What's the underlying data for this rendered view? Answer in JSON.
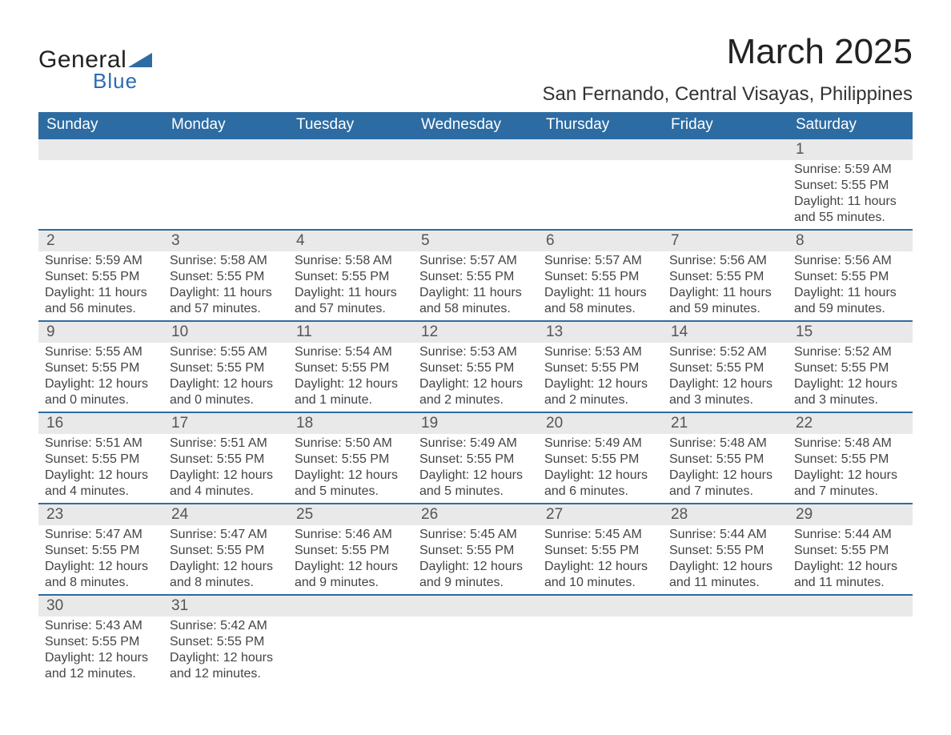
{
  "brand": {
    "line1": "General",
    "line2": "Blue",
    "triangle_color": "#2d6ca2"
  },
  "title": "March 2025",
  "location": "San Fernando, Central Visayas, Philippines",
  "colors": {
    "header_bg": "#2d6ca2",
    "header_text": "#ffffff",
    "daynum_bg": "#e9e9e9",
    "row_divider": "#2d6ca2",
    "body_text": "#444444",
    "background": "#ffffff"
  },
  "typography": {
    "title_fontsize": 44,
    "location_fontsize": 24,
    "header_fontsize": 19,
    "daynum_fontsize": 19,
    "cell_fontsize": 16
  },
  "day_headers": [
    "Sunday",
    "Monday",
    "Tuesday",
    "Wednesday",
    "Thursday",
    "Friday",
    "Saturday"
  ],
  "labels": {
    "sunrise": "Sunrise",
    "sunset": "Sunset",
    "daylight": "Daylight"
  },
  "weeks": [
    [
      null,
      null,
      null,
      null,
      null,
      null,
      {
        "n": "1",
        "sunrise": "5:59 AM",
        "sunset": "5:55 PM",
        "daylight": "11 hours and 55 minutes."
      }
    ],
    [
      {
        "n": "2",
        "sunrise": "5:59 AM",
        "sunset": "5:55 PM",
        "daylight": "11 hours and 56 minutes."
      },
      {
        "n": "3",
        "sunrise": "5:58 AM",
        "sunset": "5:55 PM",
        "daylight": "11 hours and 57 minutes."
      },
      {
        "n": "4",
        "sunrise": "5:58 AM",
        "sunset": "5:55 PM",
        "daylight": "11 hours and 57 minutes."
      },
      {
        "n": "5",
        "sunrise": "5:57 AM",
        "sunset": "5:55 PM",
        "daylight": "11 hours and 58 minutes."
      },
      {
        "n": "6",
        "sunrise": "5:57 AM",
        "sunset": "5:55 PM",
        "daylight": "11 hours and 58 minutes."
      },
      {
        "n": "7",
        "sunrise": "5:56 AM",
        "sunset": "5:55 PM",
        "daylight": "11 hours and 59 minutes."
      },
      {
        "n": "8",
        "sunrise": "5:56 AM",
        "sunset": "5:55 PM",
        "daylight": "11 hours and 59 minutes."
      }
    ],
    [
      {
        "n": "9",
        "sunrise": "5:55 AM",
        "sunset": "5:55 PM",
        "daylight": "12 hours and 0 minutes."
      },
      {
        "n": "10",
        "sunrise": "5:55 AM",
        "sunset": "5:55 PM",
        "daylight": "12 hours and 0 minutes."
      },
      {
        "n": "11",
        "sunrise": "5:54 AM",
        "sunset": "5:55 PM",
        "daylight": "12 hours and 1 minute."
      },
      {
        "n": "12",
        "sunrise": "5:53 AM",
        "sunset": "5:55 PM",
        "daylight": "12 hours and 2 minutes."
      },
      {
        "n": "13",
        "sunrise": "5:53 AM",
        "sunset": "5:55 PM",
        "daylight": "12 hours and 2 minutes."
      },
      {
        "n": "14",
        "sunrise": "5:52 AM",
        "sunset": "5:55 PM",
        "daylight": "12 hours and 3 minutes."
      },
      {
        "n": "15",
        "sunrise": "5:52 AM",
        "sunset": "5:55 PM",
        "daylight": "12 hours and 3 minutes."
      }
    ],
    [
      {
        "n": "16",
        "sunrise": "5:51 AM",
        "sunset": "5:55 PM",
        "daylight": "12 hours and 4 minutes."
      },
      {
        "n": "17",
        "sunrise": "5:51 AM",
        "sunset": "5:55 PM",
        "daylight": "12 hours and 4 minutes."
      },
      {
        "n": "18",
        "sunrise": "5:50 AM",
        "sunset": "5:55 PM",
        "daylight": "12 hours and 5 minutes."
      },
      {
        "n": "19",
        "sunrise": "5:49 AM",
        "sunset": "5:55 PM",
        "daylight": "12 hours and 5 minutes."
      },
      {
        "n": "20",
        "sunrise": "5:49 AM",
        "sunset": "5:55 PM",
        "daylight": "12 hours and 6 minutes."
      },
      {
        "n": "21",
        "sunrise": "5:48 AM",
        "sunset": "5:55 PM",
        "daylight": "12 hours and 7 minutes."
      },
      {
        "n": "22",
        "sunrise": "5:48 AM",
        "sunset": "5:55 PM",
        "daylight": "12 hours and 7 minutes."
      }
    ],
    [
      {
        "n": "23",
        "sunrise": "5:47 AM",
        "sunset": "5:55 PM",
        "daylight": "12 hours and 8 minutes."
      },
      {
        "n": "24",
        "sunrise": "5:47 AM",
        "sunset": "5:55 PM",
        "daylight": "12 hours and 8 minutes."
      },
      {
        "n": "25",
        "sunrise": "5:46 AM",
        "sunset": "5:55 PM",
        "daylight": "12 hours and 9 minutes."
      },
      {
        "n": "26",
        "sunrise": "5:45 AM",
        "sunset": "5:55 PM",
        "daylight": "12 hours and 9 minutes."
      },
      {
        "n": "27",
        "sunrise": "5:45 AM",
        "sunset": "5:55 PM",
        "daylight": "12 hours and 10 minutes."
      },
      {
        "n": "28",
        "sunrise": "5:44 AM",
        "sunset": "5:55 PM",
        "daylight": "12 hours and 11 minutes."
      },
      {
        "n": "29",
        "sunrise": "5:44 AM",
        "sunset": "5:55 PM",
        "daylight": "12 hours and 11 minutes."
      }
    ],
    [
      {
        "n": "30",
        "sunrise": "5:43 AM",
        "sunset": "5:55 PM",
        "daylight": "12 hours and 12 minutes."
      },
      {
        "n": "31",
        "sunrise": "5:42 AM",
        "sunset": "5:55 PM",
        "daylight": "12 hours and 12 minutes."
      },
      null,
      null,
      null,
      null,
      null
    ]
  ]
}
